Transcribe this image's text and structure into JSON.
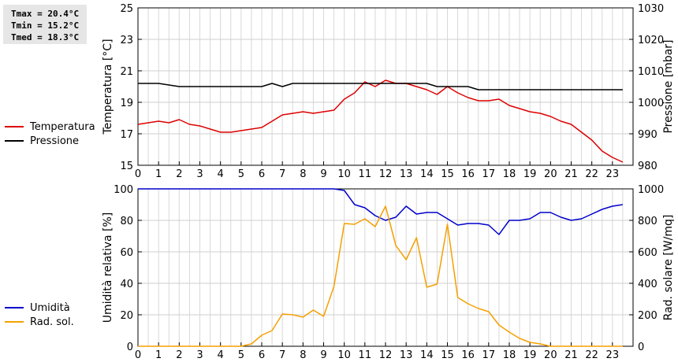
{
  "stats": {
    "tmax": "Tmax = 20.4°C",
    "tmin": "Tmin = 15.2°C",
    "tmed": "Tmed = 18.3°C"
  },
  "legend_top": [
    {
      "label": "Temperatura",
      "color": "#dd0000"
    },
    {
      "label": "Pressione",
      "color": "#000000"
    }
  ],
  "legend_bottom": [
    {
      "label": "Umidità",
      "color": "#0000cc"
    },
    {
      "label": "Rad. sol.",
      "color": "#f5a000"
    }
  ],
  "chart_data": [
    {
      "type": "line",
      "x_ticks": [
        "0",
        "1",
        "2",
        "3",
        "4",
        "5",
        "6",
        "7",
        "8",
        "9",
        "10",
        "11",
        "12",
        "13",
        "14",
        "15",
        "16",
        "17",
        "18",
        "19",
        "20",
        "21",
        "22",
        "23"
      ],
      "xlim": [
        0,
        24
      ],
      "ylabel": "Temperatura [°C]",
      "ylim": [
        15,
        25
      ],
      "y_ticks": [
        "15",
        "17",
        "19",
        "21",
        "23",
        "25"
      ],
      "y2label": "Pressione [mbar]",
      "y2lim": [
        980,
        1030
      ],
      "y2_ticks": [
        "980",
        "990",
        "1000",
        "1010",
        "1020",
        "1030"
      ],
      "grid": true,
      "legend_position": "left",
      "series": [
        {
          "name": "Temperatura",
          "axis": "left",
          "color": "#dd0000",
          "x": [
            0,
            0.5,
            1,
            1.5,
            2,
            2.5,
            3,
            3.5,
            4,
            4.5,
            5,
            5.5,
            6,
            6.5,
            7,
            7.5,
            8,
            8.5,
            9,
            9.5,
            10,
            10.5,
            11,
            11.5,
            12,
            12.5,
            13,
            13.5,
            14,
            14.5,
            15,
            15.5,
            16,
            16.5,
            17,
            17.5,
            18,
            18.5,
            19,
            19.5,
            20,
            20.5,
            21,
            21.5,
            22,
            22.5,
            23,
            23.5
          ],
          "values": [
            17.6,
            17.7,
            17.8,
            17.7,
            17.9,
            17.6,
            17.5,
            17.3,
            17.1,
            17.1,
            17.2,
            17.3,
            17.4,
            17.8,
            18.2,
            18.3,
            18.4,
            18.3,
            18.4,
            18.5,
            19.2,
            19.6,
            20.3,
            20.0,
            20.4,
            20.2,
            20.2,
            20.0,
            19.8,
            19.5,
            20.0,
            19.6,
            19.3,
            19.1,
            19.1,
            19.2,
            18.8,
            18.6,
            18.4,
            18.3,
            18.1,
            17.8,
            17.6,
            17.1,
            16.6,
            15.9,
            15.5,
            15.2
          ]
        },
        {
          "name": "Pressione",
          "axis": "right",
          "color": "#000000",
          "x": [
            0,
            1,
            1.5,
            2,
            6,
            6.5,
            7,
            7.5,
            8,
            12,
            13,
            14,
            14.5,
            16,
            16.5,
            23.5
          ],
          "values": [
            1006,
            1006,
            1005.5,
            1005,
            1005,
            1006,
            1005,
            1006,
            1006,
            1006,
            1006,
            1006,
            1005,
            1005,
            1004,
            1004
          ]
        }
      ]
    },
    {
      "type": "line",
      "x_ticks": [
        "0",
        "1",
        "2",
        "3",
        "4",
        "5",
        "6",
        "7",
        "8",
        "9",
        "10",
        "11",
        "12",
        "13",
        "14",
        "15",
        "16",
        "17",
        "18",
        "19",
        "20",
        "21",
        "22",
        "23"
      ],
      "xlim": [
        0,
        24
      ],
      "ylabel": "Umidità relativa [%]",
      "ylim": [
        0,
        100
      ],
      "y_ticks": [
        "0",
        "20",
        "40",
        "60",
        "80",
        "100"
      ],
      "y2label": "Rad. solare [W/mq]",
      "y2lim": [
        0,
        1000
      ],
      "y2_ticks": [
        "0",
        "200",
        "400",
        "600",
        "800",
        "1000"
      ],
      "grid": true,
      "legend_position": "left",
      "series": [
        {
          "name": "Umidità",
          "axis": "left",
          "color": "#0000cc",
          "x": [
            0,
            9.5,
            10,
            10.5,
            11,
            11.5,
            12,
            12.5,
            13,
            13.5,
            14,
            14.5,
            15,
            15.5,
            16,
            16.5,
            17,
            17.5,
            18,
            18.5,
            19,
            19.5,
            20,
            20.5,
            21,
            21.5,
            22,
            22.5,
            23,
            23.5
          ],
          "values": [
            100,
            100,
            99,
            90,
            88,
            83,
            80,
            82,
            89,
            84,
            85,
            85,
            81,
            77,
            78,
            78,
            77,
            71,
            80,
            80,
            81,
            85,
            85,
            82,
            80,
            81,
            84,
            87,
            89,
            90
          ]
        },
        {
          "name": "Rad. sol.",
          "axis": "right",
          "color": "#f5a000",
          "x": [
            0,
            0.5,
            1,
            1.5,
            2,
            2.5,
            3,
            3.5,
            4,
            4.5,
            5,
            5.5,
            6,
            6.5,
            7,
            7.5,
            8,
            8.5,
            9,
            9.5,
            10,
            10.5,
            11,
            11.5,
            12,
            12.5,
            13,
            13.5,
            14,
            14.5,
            15,
            15.5,
            16,
            16.5,
            17,
            17.5,
            18,
            18.5,
            19,
            19.5,
            20,
            20.5,
            21,
            21.5,
            22,
            22.5,
            23,
            23.5
          ],
          "values": [
            0,
            0,
            0,
            0,
            0,
            0,
            0,
            0,
            0,
            0,
            0,
            15,
            70,
            100,
            205,
            200,
            185,
            230,
            190,
            380,
            780,
            775,
            810,
            760,
            890,
            640,
            550,
            690,
            375,
            395,
            775,
            310,
            270,
            240,
            220,
            135,
            90,
            50,
            25,
            15,
            0,
            0,
            0,
            0,
            0,
            0,
            0,
            0
          ]
        }
      ]
    }
  ]
}
